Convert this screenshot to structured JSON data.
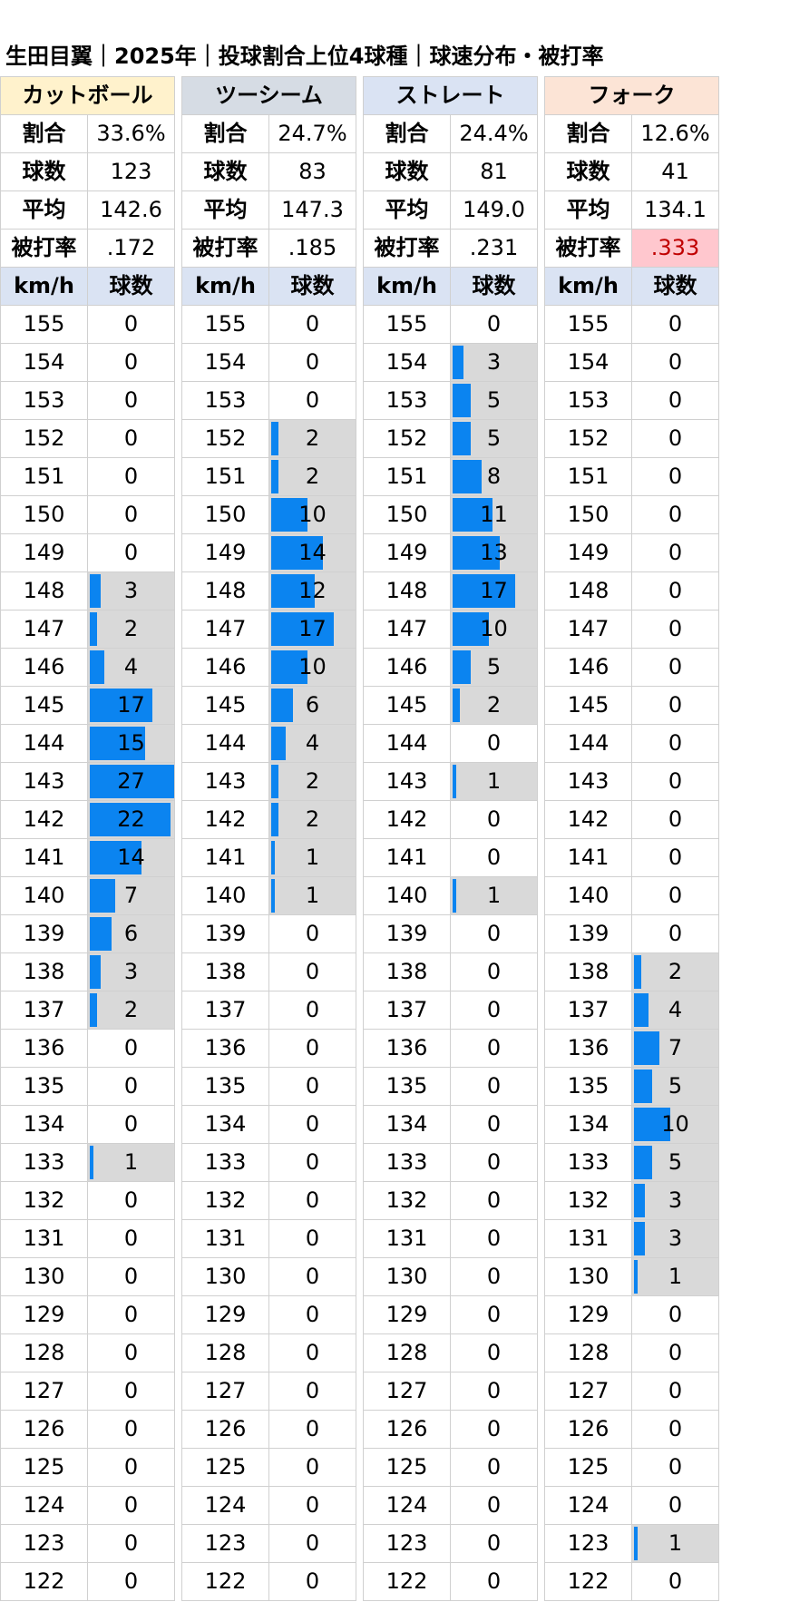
{
  "title": "生田目翼｜2025年｜投球割合上位4球種｜球速分布・被打率",
  "labels": {
    "ratio": "割合",
    "count": "球数",
    "avg": "平均",
    "babip": "被打率",
    "kmh": "km/h",
    "balls": "球数"
  },
  "speeds": [
    155,
    154,
    153,
    152,
    151,
    150,
    149,
    148,
    147,
    146,
    145,
    144,
    143,
    142,
    141,
    140,
    139,
    138,
    137,
    136,
    135,
    134,
    133,
    132,
    131,
    130,
    129,
    128,
    127,
    126,
    125,
    124,
    123,
    122
  ],
  "chart_data": {
    "type": "table",
    "title": "生田目翼｜2025年｜投球割合上位4球種｜球速分布・被打率",
    "x_label": "km/h",
    "value_label": "球数",
    "bar_max": 27,
    "pitches": [
      {
        "name": "カットボール",
        "header_color": "#fff2cc",
        "ratio": "33.6%",
        "count": "123",
        "avg": "142.6",
        "babip": ".172",
        "babip_highlight": false,
        "values": [
          0,
          0,
          0,
          0,
          0,
          0,
          0,
          3,
          2,
          4,
          17,
          15,
          27,
          22,
          14,
          7,
          6,
          3,
          2,
          0,
          0,
          0,
          1,
          0,
          0,
          0,
          0,
          0,
          0,
          0,
          0,
          0,
          0,
          0
        ]
      },
      {
        "name": "ツーシーム",
        "header_color": "#d6dce4",
        "ratio": "24.7%",
        "count": "83",
        "avg": "147.3",
        "babip": ".185",
        "babip_highlight": false,
        "values": [
          0,
          0,
          0,
          2,
          2,
          10,
          14,
          12,
          17,
          10,
          6,
          4,
          2,
          2,
          1,
          1,
          0,
          0,
          0,
          0,
          0,
          0,
          0,
          0,
          0,
          0,
          0,
          0,
          0,
          0,
          0,
          0,
          0,
          0
        ]
      },
      {
        "name": "ストレート",
        "header_color": "#dae3f3",
        "ratio": "24.4%",
        "count": "81",
        "avg": "149.0",
        "babip": ".231",
        "babip_highlight": false,
        "values": [
          0,
          3,
          5,
          5,
          8,
          11,
          13,
          17,
          10,
          5,
          2,
          0,
          1,
          0,
          0,
          1,
          0,
          0,
          0,
          0,
          0,
          0,
          0,
          0,
          0,
          0,
          0,
          0,
          0,
          0,
          0,
          0,
          0,
          0
        ]
      },
      {
        "name": "フォーク",
        "header_color": "#fce4d6",
        "ratio": "12.6%",
        "count": "41",
        "avg": "134.1",
        "babip": ".333",
        "babip_highlight": true,
        "values": [
          0,
          0,
          0,
          0,
          0,
          0,
          0,
          0,
          0,
          0,
          0,
          0,
          0,
          0,
          0,
          0,
          0,
          2,
          4,
          7,
          5,
          10,
          5,
          3,
          3,
          1,
          0,
          0,
          0,
          0,
          0,
          0,
          1,
          0
        ]
      }
    ]
  }
}
